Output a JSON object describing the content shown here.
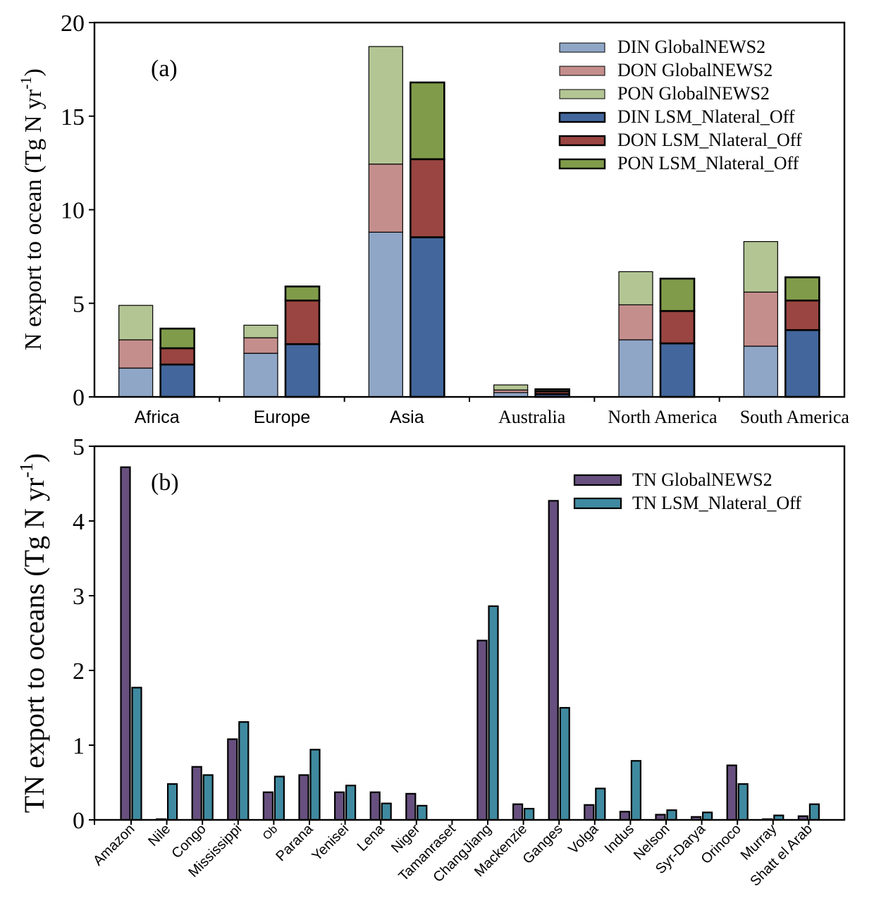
{
  "chart_data": [
    {
      "type": "bar",
      "stacked": true,
      "panel_label": "(a)",
      "title": "",
      "xlabel": "",
      "ylabel": "N export to ocean (Tg N yr",
      "ylabel_sup": "-1",
      "ylabel_tail": ")",
      "ylim": [
        0,
        20
      ],
      "yticks": [
        0,
        5,
        10,
        15,
        20
      ],
      "grid": false,
      "legend_position": "top-right",
      "categories": [
        "Africa",
        "Europe",
        "Asia",
        "Australia",
        "North America",
        "South America"
      ],
      "groups": [
        {
          "name": "GlobalNEWS2",
          "series": [
            {
              "name": "DIN GlobalNEWS2",
              "color": "#8FA6C6",
              "values": [
                1.54,
                2.33,
                8.8,
                0.23,
                3.05,
                2.71
              ]
            },
            {
              "name": "DON GlobalNEWS2",
              "color": "#C48E8C",
              "values": [
                1.51,
                0.83,
                3.64,
                0.14,
                1.87,
                2.89
              ]
            },
            {
              "name": "PON GlobalNEWS2",
              "color": "#B4C594",
              "values": [
                1.84,
                0.67,
                6.28,
                0.27,
                1.77,
                2.7
              ]
            }
          ]
        },
        {
          "name": "LSM_Nlateral_Off",
          "series": [
            {
              "name": "DIN LSM_Nlateral_Off",
              "color": "#43679C",
              "values": [
                1.73,
                2.82,
                8.53,
                0.15,
                2.86,
                3.57
              ]
            },
            {
              "name": "DON LSM_Nlateral_Off",
              "color": "#9A4541",
              "values": [
                0.87,
                2.33,
                4.17,
                0.15,
                1.73,
                1.58
              ]
            },
            {
              "name": "PON LSM_Nlateral_Off",
              "color": "#809C4A",
              "values": [
                1.05,
                0.75,
                4.1,
                0.11,
                1.73,
                1.24
              ]
            }
          ]
        }
      ]
    },
    {
      "type": "bar",
      "stacked": false,
      "panel_label": "(b)",
      "title": "",
      "xlabel": "",
      "ylabel": "TN export to oceans (Tg N yr",
      "ylabel_sup": "-1",
      "ylabel_tail": ")",
      "ylim": [
        0,
        5
      ],
      "yticks": [
        0,
        1,
        2,
        3,
        4,
        5
      ],
      "grid": false,
      "legend_position": "top-right",
      "categories": [
        "Amazon",
        "Nile",
        "Congo",
        "Mississippi",
        "Ob",
        "Parana",
        "Yenisei",
        "Lena",
        "Niger",
        "Tamanraset",
        "ChangJiang",
        "Mackenzie",
        "Ganges",
        "Volga",
        "Indus",
        "Nelson",
        "Syr-Darya",
        "Orinoco",
        "Murray",
        "Shatt el Arab"
      ],
      "series": [
        {
          "name": "TN GlobalNEWS2",
          "color": "#67507F",
          "values": [
            4.72,
            0.01,
            0.71,
            1.08,
            0.37,
            0.6,
            0.37,
            0.37,
            0.35,
            0.0,
            2.4,
            0.21,
            4.27,
            0.2,
            0.11,
            0.07,
            0.04,
            0.73,
            0.01,
            0.05
          ]
        },
        {
          "name": "TN LSM_Nlateral_Off",
          "color": "#3F8AA0",
          "values": [
            1.77,
            0.48,
            0.6,
            1.31,
            0.58,
            0.94,
            0.46,
            0.22,
            0.19,
            0.0,
            2.86,
            0.15,
            1.5,
            0.42,
            0.79,
            0.13,
            0.1,
            0.48,
            0.06,
            0.21
          ]
        }
      ]
    }
  ]
}
